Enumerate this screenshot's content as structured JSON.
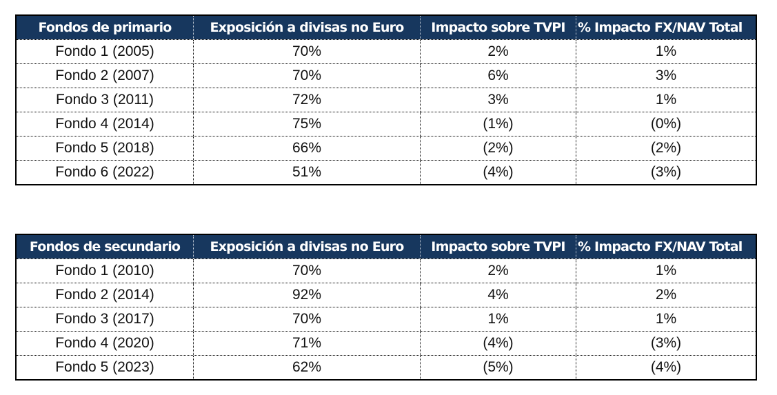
{
  "colors": {
    "header_bg": "#17375e",
    "header_text": "#ffffff",
    "border": "#000000"
  },
  "primary_table": {
    "headers": [
      "Fondos de primario",
      "Exposición a divisas no Euro",
      "Impacto sobre TVPI",
      "% Impacto FX/NAV Total"
    ],
    "rows": [
      [
        "Fondo 1 (2005)",
        "70%",
        "2%",
        "1%"
      ],
      [
        "Fondo 2 (2007)",
        "70%",
        "6%",
        "3%"
      ],
      [
        "Fondo 3 (2011)",
        "72%",
        "3%",
        "1%"
      ],
      [
        "Fondo 4 (2014)",
        "75%",
        "(1%)",
        "(0%)"
      ],
      [
        "Fondo 5 (2018)",
        "66%",
        "(2%)",
        "(2%)"
      ],
      [
        "Fondo 6 (2022)",
        "51%",
        "(4%)",
        "(3%)"
      ]
    ]
  },
  "secondary_table": {
    "headers": [
      "Fondos de secundario",
      "Exposición a divisas no Euro",
      "Impacto sobre TVPI",
      "% Impacto FX/NAV Total"
    ],
    "rows": [
      [
        "Fondo 1 (2010)",
        "70%",
        "2%",
        "1%"
      ],
      [
        "Fondo 2 (2014)",
        "92%",
        "4%",
        "2%"
      ],
      [
        "Fondo 3 (2017)",
        "70%",
        "1%",
        "1%"
      ],
      [
        "Fondo 4 (2020)",
        "71%",
        "(4%)",
        "(3%)"
      ],
      [
        "Fondo 5 (2023)",
        "62%",
        "(5%)",
        "(4%)"
      ]
    ]
  }
}
